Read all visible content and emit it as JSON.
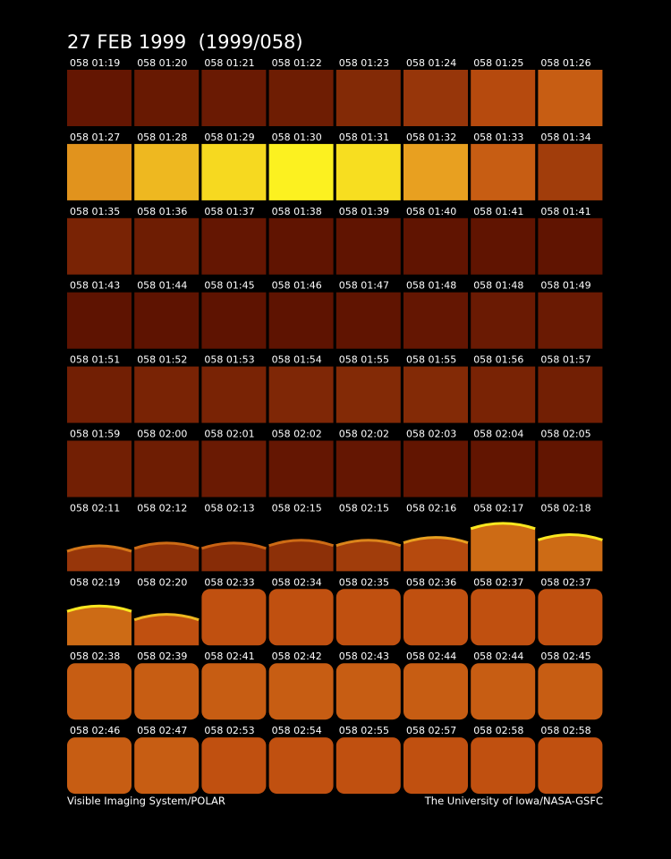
{
  "title": "27 FEB 1999  (1999/058)",
  "rows": [
    [
      "058 01:19",
      "058 01:20",
      "058 01:21",
      "058 01:22",
      "058 01:23",
      "058 01:24",
      "058 01:25",
      "058 01:26"
    ],
    [
      "058 01:27",
      "058 01:28",
      "058 01:29",
      "058 01:30",
      "058 01:31",
      "058 01:32",
      "058 01:33",
      "058 01:34"
    ],
    [
      "058 01:35",
      "058 01:36",
      "058 01:37",
      "058 01:38",
      "058 01:39",
      "058 01:40",
      "058 01:41",
      "058 01:41"
    ],
    [
      "058 01:43",
      "058 01:44",
      "058 01:45",
      "058 01:46",
      "058 01:47",
      "058 01:48",
      "058 01:48",
      "058 01:49"
    ],
    [
      "058 01:51",
      "058 01:52",
      "058 01:53",
      "058 01:54",
      "058 01:55",
      "058 01:55",
      "058 01:56",
      "058 01:57"
    ],
    [
      "058 01:59",
      "058 02:00",
      "058 02:01",
      "058 02:02",
      "058 02:02",
      "058 02:03",
      "058 02:04",
      "058 02:05"
    ],
    [
      "058 02:11",
      "058 02:12",
      "058 02:13",
      "058 02:15",
      "058 02:15",
      "058 02:16",
      "058 02:17",
      "058 02:18"
    ],
    [
      "058 02:19",
      "058 02:20",
      "058 02:33",
      "058 02:34",
      "058 02:35",
      "058 02:36",
      "058 02:37",
      "058 02:37"
    ],
    [
      "058 02:38",
      "058 02:39",
      "058 02:41",
      "058 02:42",
      "058 02:43",
      "058 02:44",
      "058 02:44",
      "058 02:45"
    ],
    [
      "058 02:46",
      "058 02:47",
      "058 02:53",
      "058 02:54",
      "058 02:55",
      "058 02:57",
      "058 02:58",
      "058 02:58"
    ]
  ],
  "footer": {
    "left": "Visible Imaging System/POLAR",
    "right": "The University of Iowa/NASA-GSFC"
  }
}
